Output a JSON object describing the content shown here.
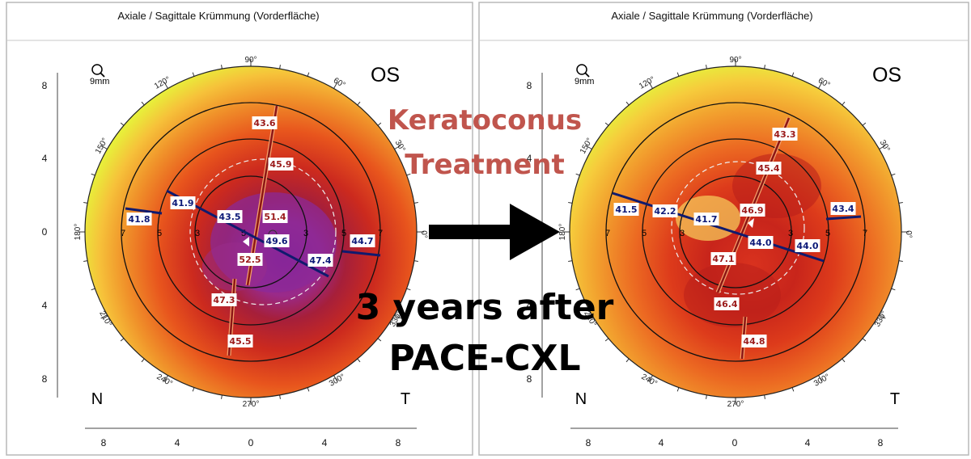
{
  "panels": [
    {
      "title": "Axiale / Sagittale Krümmung (Vorderfläche)",
      "eye": "OS",
      "zoom": "9mm",
      "nasal": "N",
      "temporal": "T",
      "vertical_ticks": [
        "8",
        "4",
        "0",
        "4",
        "8"
      ],
      "horizontal_ticks": [
        "8",
        "4",
        "0",
        "4",
        "8"
      ],
      "degree_labels": [
        "90°",
        "60°",
        "30°",
        "0°",
        "330°",
        "300°",
        "270°",
        "240°",
        "210°",
        "180°",
        "150°",
        "120°"
      ],
      "ring_labels": [
        "7",
        "5",
        "3",
        "3",
        "5",
        "7"
      ],
      "center_label": "5",
      "steep_values": [
        "43.6",
        "45.9",
        "51.4",
        "52.5",
        "47.3",
        "45.5"
      ],
      "flat_values": [
        "41.8",
        "41.9",
        "43.5",
        "49.6",
        "47.4",
        "44.7"
      ]
    },
    {
      "title": "Axiale / Sagittale Krümmung (Vorderfläche)",
      "eye": "OS",
      "zoom": "9mm",
      "nasal": "N",
      "temporal": "T",
      "vertical_ticks": [
        "8",
        "4",
        "0",
        "4",
        "8"
      ],
      "horizontal_ticks": [
        "8",
        "4",
        "0",
        "4",
        "8"
      ],
      "degree_labels": [
        "90°",
        "60°",
        "30°",
        "0°",
        "330°",
        "300°",
        "270°",
        "240°",
        "210°",
        "180°",
        "150°",
        "120°"
      ],
      "ring_labels": [
        "7",
        "5",
        "3",
        "3",
        "5",
        "7"
      ],
      "steep_values": [
        "43.3",
        "45.4",
        "46.9",
        "47.1",
        "46.4",
        "44.8"
      ],
      "flat_values": [
        "41.5",
        "42.2",
        "41.7",
        "44.0",
        "44.0",
        "43.4"
      ]
    }
  ],
  "overlay": {
    "line1": "Keratoconus",
    "line2": "Treatment",
    "line3": "3 years after",
    "line4": "PACE-CXL"
  },
  "colors": {
    "steep_label": "#9b1b1b",
    "flat_label": "#0d1a78",
    "accent_red": "#c0554d"
  }
}
